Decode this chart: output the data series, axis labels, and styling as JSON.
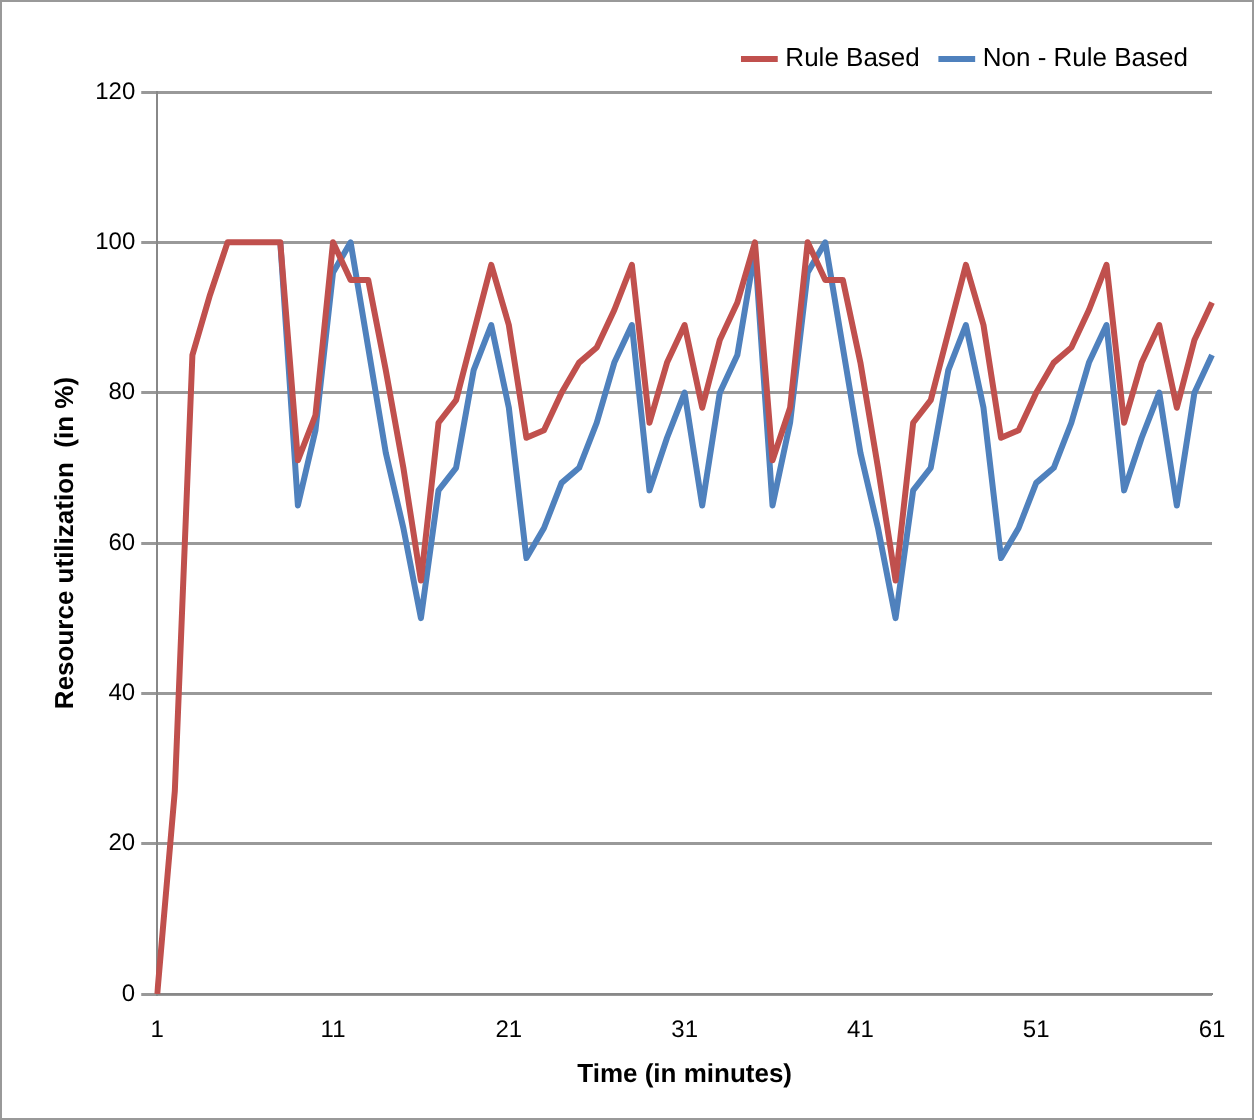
{
  "chart_data": {
    "type": "line",
    "xlabel": "Time (in minutes)",
    "ylabel": "Resource utilization  (in %)",
    "categories": [
      "1",
      null,
      null,
      null,
      null,
      null,
      null,
      null,
      null,
      null,
      "11",
      null,
      null,
      null,
      null,
      null,
      null,
      null,
      null,
      null,
      "21",
      null,
      null,
      null,
      null,
      null,
      null,
      null,
      null,
      null,
      "31",
      null,
      null,
      null,
      null,
      null,
      null,
      null,
      null,
      null,
      "41",
      null,
      null,
      null,
      null,
      null,
      null,
      null,
      null,
      null,
      "51",
      null,
      null,
      null,
      null,
      null,
      null,
      null,
      null,
      null,
      "61"
    ],
    "series": [
      {
        "name": "Rule Based",
        "color": "#c0504d",
        "values": [
          0,
          27,
          85,
          93,
          100,
          100,
          100,
          100,
          71,
          77,
          100,
          95,
          95,
          83,
          70,
          55,
          76,
          79,
          88,
          97,
          89,
          74,
          75,
          80,
          84,
          86,
          91,
          97,
          76,
          84,
          89,
          78,
          87,
          92,
          100,
          71,
          78,
          100,
          95,
          95,
          84,
          70,
          55,
          76,
          79,
          88,
          97,
          89,
          74,
          75,
          80,
          84,
          86,
          91,
          97,
          76,
          84,
          89,
          78,
          87,
          92
        ]
      },
      {
        "name": "Non - Rule Based",
        "color": "#4f81bd",
        "values": [
          null,
          null,
          null,
          null,
          null,
          null,
          null,
          100,
          65,
          75,
          96,
          100,
          86,
          72,
          62,
          50,
          67,
          70,
          83,
          89,
          78,
          58,
          62,
          68,
          70,
          76,
          84,
          89,
          67,
          74,
          80,
          65,
          80,
          85,
          99,
          65,
          76,
          96,
          100,
          86,
          72,
          62,
          50,
          67,
          70,
          83,
          89,
          78,
          58,
          62,
          68,
          70,
          76,
          84,
          89,
          67,
          74,
          80,
          65,
          80,
          85
        ]
      }
    ],
    "ylim": [
      0,
      120
    ],
    "yticks": [
      0,
      20,
      40,
      60,
      80,
      100,
      120
    ],
    "grid": "y",
    "legend": "top right",
    "marker": "none",
    "line_style": "solid"
  }
}
